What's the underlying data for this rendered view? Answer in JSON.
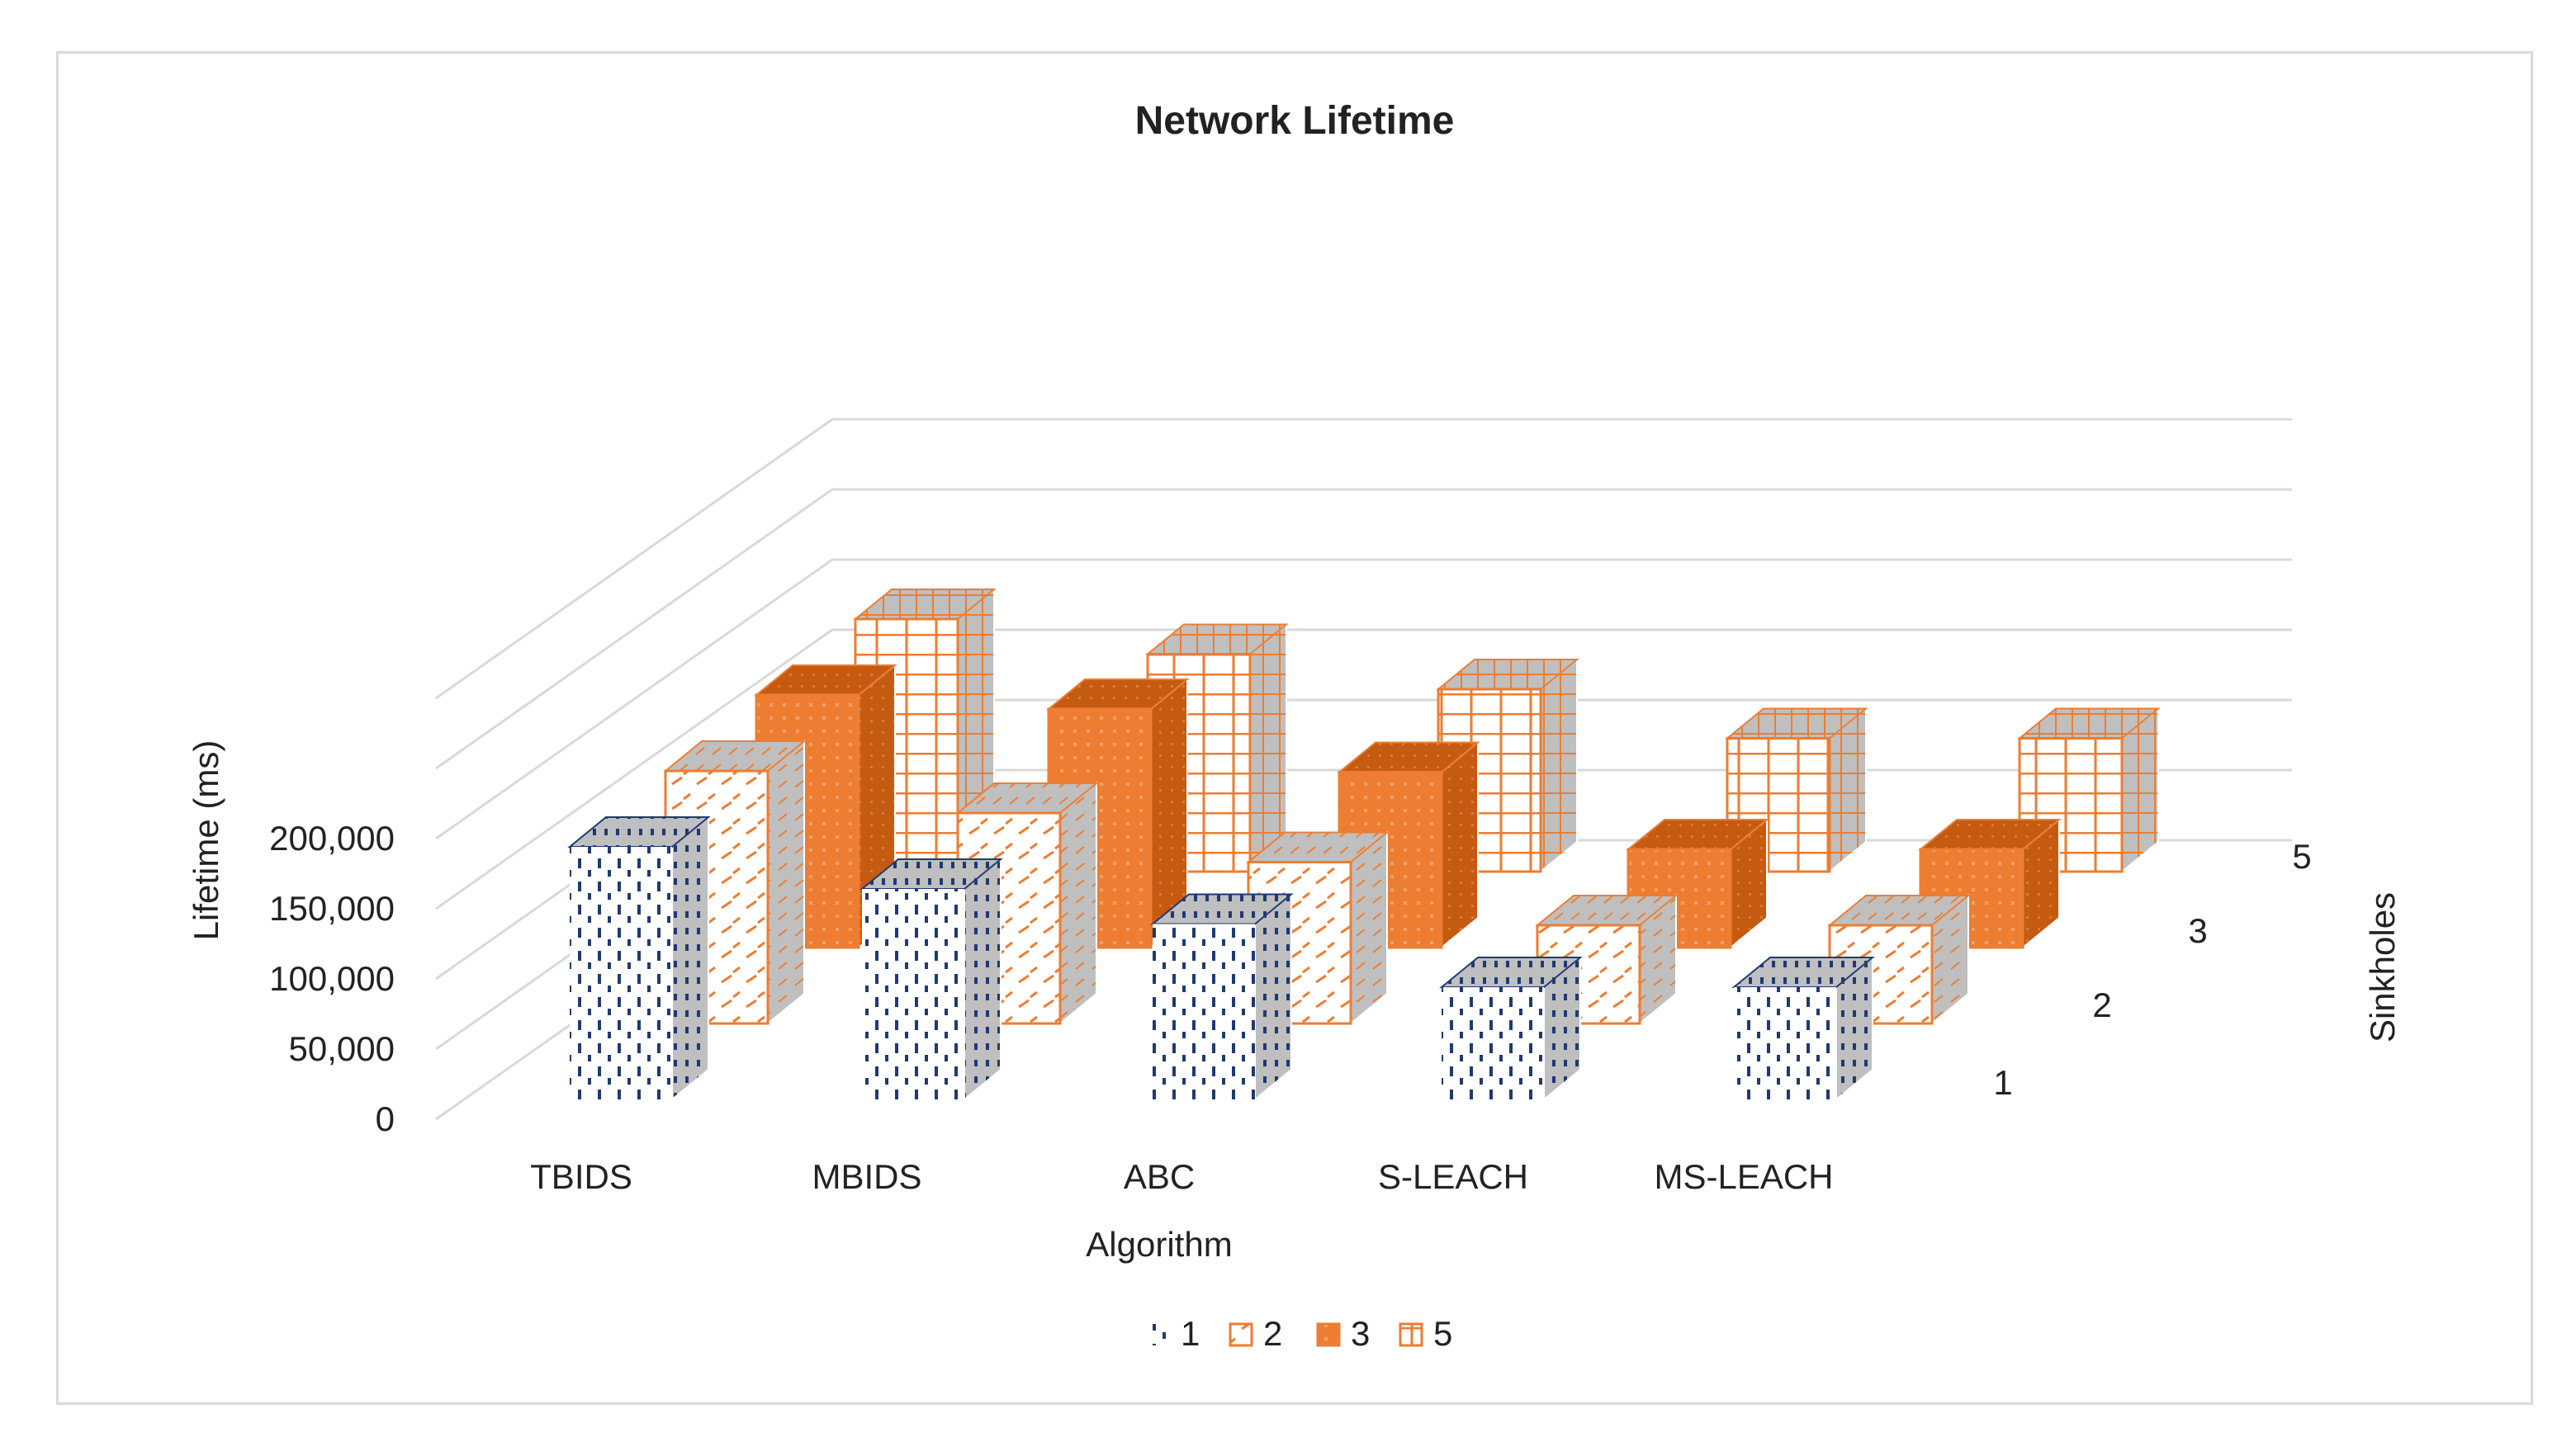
{
  "chart_data": {
    "type": "bar",
    "title": "Network Lifetime",
    "xlabel": "Algorithm",
    "ylabel": "Lifetime (ms)",
    "zlabel": "Sinkholes",
    "categories": [
      "TBIDS",
      "MBIDS",
      "ABC",
      "S-LEACH",
      "MS-LEACH"
    ],
    "ylim": [
      0,
      250000
    ],
    "y_ticks": [
      "0",
      "50,000",
      "100,000",
      "150,000",
      "200,000"
    ],
    "series": [
      {
        "name": "1",
        "values": [
          180000,
          150000,
          125000,
          80000,
          80000
        ]
      },
      {
        "name": "2",
        "values": [
          180000,
          150000,
          115000,
          70000,
          70000
        ]
      },
      {
        "name": "3",
        "values": [
          180000,
          170000,
          125000,
          70000,
          70000
        ]
      },
      {
        "name": "5",
        "values": [
          180000,
          155000,
          130000,
          95000,
          95000
        ]
      }
    ],
    "legend_position": "bottom",
    "grid": true,
    "projection": "3d"
  },
  "colors": {
    "series1": "#1f3a73",
    "orange": "#ed7d31",
    "orange_dark": "#c55a11",
    "side": "#bfbfbf",
    "grid": "#d9d9d9"
  }
}
